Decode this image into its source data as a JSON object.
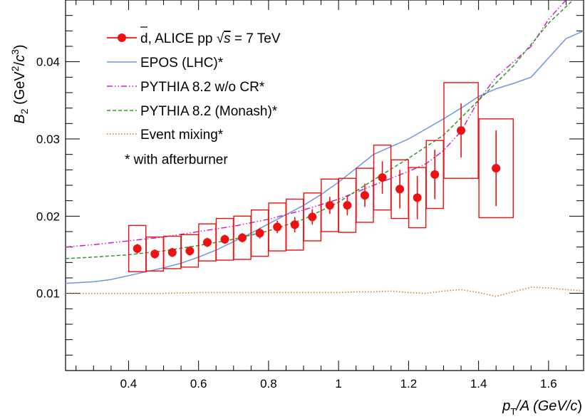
{
  "chart_data": {
    "type": "scatter",
    "title": "",
    "xlabel": "p_T/A (GeV/c)",
    "xlabel_parts": {
      "p": "p",
      "sub": "T",
      "rest": "/A (GeV/",
      "c": "c",
      "close": ")"
    },
    "ylabel": "B_2 (GeV^2/c^3)",
    "ylabel_parts": {
      "b": "B",
      "sub": "2",
      "open": " (GeV",
      "sup1": "2",
      "mid": "/",
      "c": "c",
      "sup2": "3",
      "close": ")"
    },
    "xlim": [
      0.22,
      1.7
    ],
    "ylim": [
      0.0,
      0.048
    ],
    "x_ticks": [
      0.4,
      0.6,
      0.8,
      1.0,
      1.2,
      1.4,
      1.6
    ],
    "x_tick_labels": [
      "0.4",
      "0.6",
      "0.8",
      "1",
      "1.2",
      "1.4",
      "1.6"
    ],
    "y_ticks": [
      0.01,
      0.02,
      0.03,
      0.04
    ],
    "y_tick_labels": [
      "0.01",
      "0.02",
      "0.03",
      "0.04"
    ],
    "legend_placement": "top-left",
    "legend": {
      "data_label_prefix": "d, ALICE pp ",
      "data_label_sqrt": "√",
      "data_label_s": "s",
      "data_label_suffix": " = 7 TeV",
      "epos": "EPOS (LHC)*",
      "pythia_nocr": "PYTHIA 8.2 w/o CR*",
      "pythia_monash": "PYTHIA 8.2 (Monash)*",
      "mixing": "Event mixing*",
      "note": "* with afterburner"
    },
    "colors": {
      "data": "#ee1111",
      "epos": "#6f95e6",
      "pythia_nocr": "#cc22cc",
      "pythia_monash": "#2a9a2a",
      "mixing": "#d9771e"
    },
    "data_points": [
      {
        "x": 0.425,
        "y": 0.0158,
        "stat": 0.0006,
        "syst": 0.003,
        "xerr": 0.025
      },
      {
        "x": 0.475,
        "y": 0.0151,
        "stat": 0.0006,
        "syst": 0.0022,
        "xerr": 0.025
      },
      {
        "x": 0.525,
        "y": 0.0153,
        "stat": 0.0006,
        "syst": 0.0021,
        "xerr": 0.025
      },
      {
        "x": 0.575,
        "y": 0.0155,
        "stat": 0.0006,
        "syst": 0.0021,
        "xerr": 0.025
      },
      {
        "x": 0.625,
        "y": 0.0166,
        "stat": 0.0006,
        "syst": 0.0024,
        "xerr": 0.025
      },
      {
        "x": 0.675,
        "y": 0.017,
        "stat": 0.0006,
        "syst": 0.0027,
        "xerr": 0.025
      },
      {
        "x": 0.725,
        "y": 0.0172,
        "stat": 0.0006,
        "syst": 0.0028,
        "xerr": 0.025
      },
      {
        "x": 0.775,
        "y": 0.0178,
        "stat": 0.0007,
        "syst": 0.003,
        "xerr": 0.025
      },
      {
        "x": 0.825,
        "y": 0.0186,
        "stat": 0.0008,
        "syst": 0.0031,
        "xerr": 0.025
      },
      {
        "x": 0.875,
        "y": 0.0189,
        "stat": 0.001,
        "syst": 0.0033,
        "xerr": 0.025
      },
      {
        "x": 0.925,
        "y": 0.0199,
        "stat": 0.001,
        "syst": 0.0031,
        "xerr": 0.025
      },
      {
        "x": 0.975,
        "y": 0.0214,
        "stat": 0.0011,
        "syst": 0.0034,
        "xerr": 0.025
      },
      {
        "x": 1.025,
        "y": 0.0214,
        "stat": 0.0013,
        "syst": 0.0035,
        "xerr": 0.025
      },
      {
        "x": 1.075,
        "y": 0.0227,
        "stat": 0.0015,
        "syst": 0.0035,
        "xerr": 0.025
      },
      {
        "x": 1.125,
        "y": 0.025,
        "stat": 0.0021,
        "syst": 0.0042,
        "xerr": 0.025
      },
      {
        "x": 1.175,
        "y": 0.0235,
        "stat": 0.0025,
        "syst": 0.0038,
        "xerr": 0.025
      },
      {
        "x": 1.225,
        "y": 0.0224,
        "stat": 0.0028,
        "syst": 0.0039,
        "xerr": 0.025
      },
      {
        "x": 1.275,
        "y": 0.0254,
        "stat": 0.0032,
        "syst": 0.0044,
        "xerr": 0.025
      },
      {
        "x": 1.35,
        "y": 0.0311,
        "stat": 0.0035,
        "syst": 0.0062,
        "xerr": 0.05
      },
      {
        "x": 1.45,
        "y": 0.0262,
        "stat": 0.0049,
        "syst": 0.0064,
        "xerr": 0.05
      }
    ],
    "series": [
      {
        "name": "EPOS (LHC)*",
        "style": "solid",
        "x": [
          0.22,
          0.3,
          0.35,
          0.4,
          0.45,
          0.5,
          0.55,
          0.6,
          0.65,
          0.7,
          0.75,
          0.8,
          0.85,
          0.9,
          0.95,
          1.0,
          1.05,
          1.1,
          1.15,
          1.2,
          1.25,
          1.3,
          1.35,
          1.4,
          1.45,
          1.5,
          1.55,
          1.6,
          1.65,
          1.7
        ],
        "y": [
          0.0113,
          0.0115,
          0.0118,
          0.0123,
          0.0128,
          0.0133,
          0.0139,
          0.0147,
          0.0156,
          0.0167,
          0.0178,
          0.019,
          0.0202,
          0.0214,
          0.0228,
          0.0244,
          0.0262,
          0.028,
          0.029,
          0.03,
          0.0313,
          0.0326,
          0.034,
          0.0355,
          0.0365,
          0.0372,
          0.038,
          0.0405,
          0.043,
          0.044
        ]
      },
      {
        "name": "PYTHIA 8.2 w/o CR*",
        "style": "dash-dot-dot",
        "x": [
          0.22,
          0.3,
          0.4,
          0.5,
          0.6,
          0.7,
          0.8,
          0.9,
          1.0,
          1.1,
          1.2,
          1.25,
          1.3,
          1.35,
          1.4,
          1.45,
          1.5,
          1.55,
          1.6,
          1.65
        ],
        "y": [
          0.016,
          0.0163,
          0.0168,
          0.0173,
          0.018,
          0.0187,
          0.0196,
          0.0208,
          0.0222,
          0.024,
          0.0258,
          0.0268,
          0.0285,
          0.031,
          0.035,
          0.038,
          0.04,
          0.042,
          0.0455,
          0.048
        ]
      },
      {
        "name": "PYTHIA 8.2 (Monash)*",
        "style": "dashed",
        "x": [
          0.22,
          0.3,
          0.4,
          0.5,
          0.6,
          0.7,
          0.8,
          0.9,
          1.0,
          1.1,
          1.2,
          1.3,
          1.4,
          1.5,
          1.6,
          1.67
        ],
        "y": [
          0.0145,
          0.0147,
          0.015,
          0.0155,
          0.0162,
          0.017,
          0.0181,
          0.0196,
          0.0218,
          0.0247,
          0.0275,
          0.0305,
          0.035,
          0.0395,
          0.045,
          0.048
        ]
      },
      {
        "name": "Event mixing*",
        "style": "dotted",
        "x": [
          0.22,
          0.3,
          0.4,
          0.5,
          0.6,
          0.7,
          0.8,
          0.9,
          1.0,
          1.05,
          1.1,
          1.15,
          1.2,
          1.25,
          1.3,
          1.35,
          1.4,
          1.45,
          1.5,
          1.55,
          1.6,
          1.65,
          1.7
        ],
        "y": [
          0.01,
          0.01,
          0.01,
          0.01,
          0.0101,
          0.0101,
          0.0101,
          0.0101,
          0.0101,
          0.0102,
          0.0102,
          0.0103,
          0.0101,
          0.01,
          0.0103,
          0.0105,
          0.0101,
          0.0096,
          0.0102,
          0.0108,
          0.0107,
          0.0105,
          0.0103
        ]
      }
    ]
  }
}
